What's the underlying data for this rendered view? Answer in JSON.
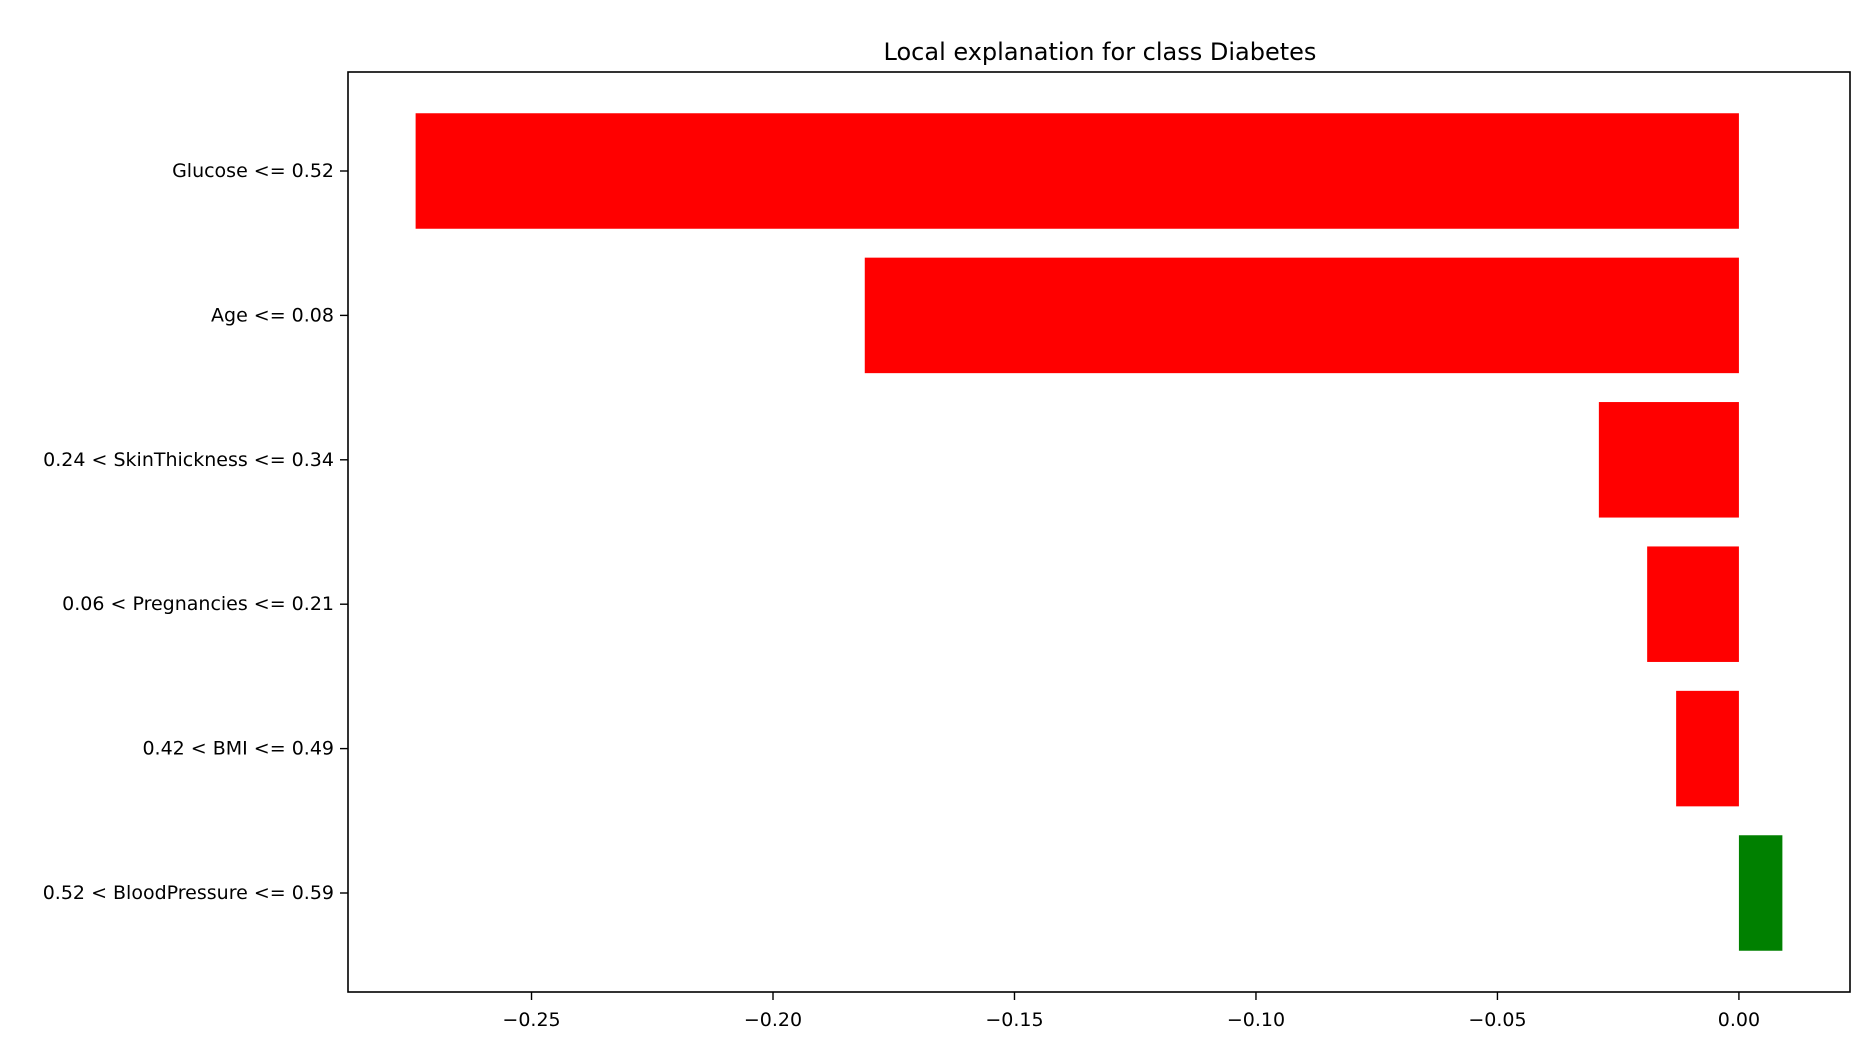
{
  "chart_data": {
    "type": "bar",
    "orientation": "horizontal",
    "title": "Local explanation for class Diabetes",
    "xlabel": "",
    "ylabel": "",
    "categories": [
      "Glucose <= 0.52",
      "Age <= 0.08",
      "0.24 < SkinThickness <= 0.34",
      "0.06 < Pregnancies <= 0.21",
      "0.42 < BMI <= 0.49",
      "0.52 < BloodPressure <= 0.59"
    ],
    "values": [
      -0.274,
      -0.181,
      -0.029,
      -0.019,
      -0.013,
      0.009
    ],
    "colors": [
      "#ff0000",
      "#ff0000",
      "#ff0000",
      "#ff0000",
      "#ff0000",
      "#008000"
    ],
    "xlim": [
      -0.288,
      0.023
    ],
    "xticks": [
      -0.25,
      -0.2,
      -0.15,
      -0.1,
      -0.05,
      0.0
    ],
    "xtick_labels": [
      "−0.25",
      "−0.20",
      "−0.15",
      "−0.10",
      "−0.05",
      "0.00"
    ],
    "grid": false,
    "legend": "none"
  }
}
